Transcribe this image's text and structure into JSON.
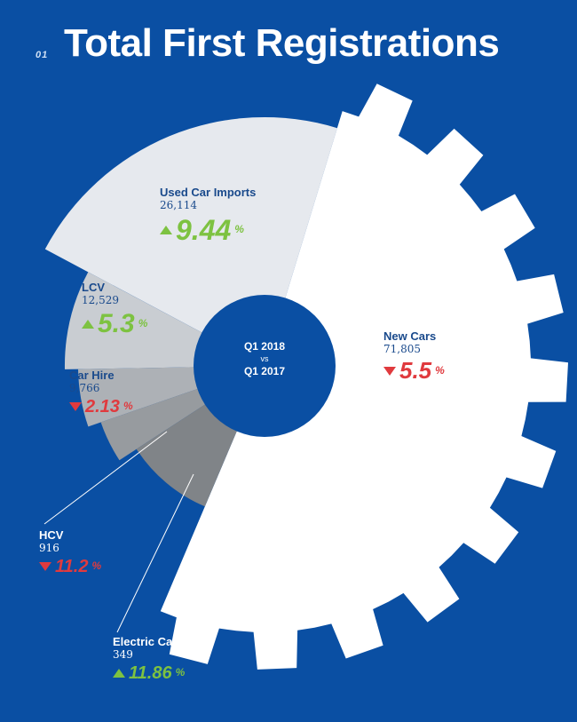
{
  "header": {
    "number": "01",
    "title": "Total First Registrations"
  },
  "center": {
    "line1": "Q1 2018",
    "vs": "vs",
    "line2": "Q1 2017"
  },
  "colors": {
    "background": "#0a4fa3",
    "new_cars": "#ffffff",
    "used_car_imports": "#e6e9ee",
    "lcv": "#c9cdd2",
    "car_hire": "#adb1b6",
    "hcv": "#979b9f",
    "electric_car": "#808488",
    "center": "#0a4fa3",
    "increase": "#7dc241",
    "decrease": "#e03a3e"
  },
  "chart_data": {
    "type": "pie",
    "title": "Total First Registrations",
    "subtitle": "Q1 2018 vs Q1 2017",
    "series": [
      {
        "name": "New Cars",
        "value_label": "71,805",
        "value": 71805,
        "change_label": "5.5%",
        "change": -5.5,
        "direction": "down"
      },
      {
        "name": "Used Car Imports",
        "value_label": "26,114",
        "value": 26114,
        "change_label": "9.44%",
        "change": 9.44,
        "direction": "up"
      },
      {
        "name": "LCV",
        "value_label": "12,529",
        "value": 12529,
        "change_label": "5.3%",
        "change": 5.3,
        "direction": "up"
      },
      {
        "name": "Car Hire",
        "value_label": "9,766",
        "value": 9766,
        "change_label": "2.13%",
        "change": -2.13,
        "direction": "down"
      },
      {
        "name": "HCV",
        "value_label": "916",
        "value": 916,
        "change_label": "11.2%",
        "change": -11.2,
        "direction": "down"
      },
      {
        "name": "Electric Car",
        "value_label": "349",
        "value": 349,
        "change_label": "11.86%",
        "change": 11.86,
        "direction": "up"
      }
    ]
  }
}
